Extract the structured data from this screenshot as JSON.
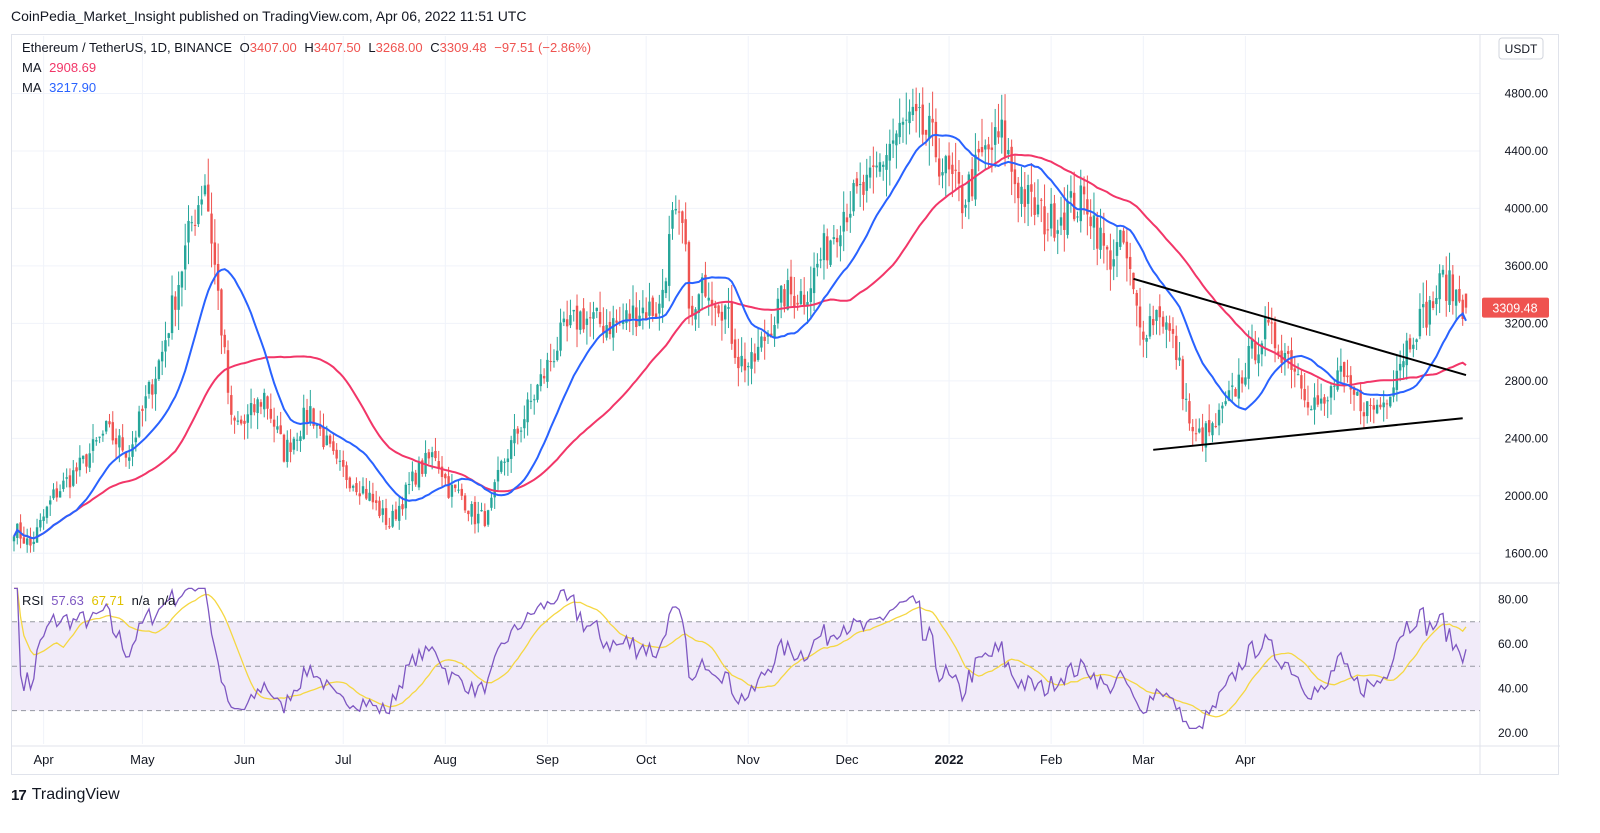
{
  "publisher_line": "CoinPedia_Market_Insight published on TradingView.com, Apr 06, 2022 11:51 UTC",
  "header": {
    "symbol": "Ethereum / TetherUS, 1D, BINANCE",
    "open_label": "O",
    "open": "3407.00",
    "high_label": "H",
    "high": "3407.50",
    "low_label": "L",
    "low": "3268.00",
    "close_label": "C",
    "close": "3309.48",
    "change": "−97.51 (−2.86%)"
  },
  "ma1": {
    "label": "MA",
    "value": "2908.69"
  },
  "ma2": {
    "label": "MA",
    "value": "3217.90"
  },
  "rsi_legend": {
    "label": "RSI",
    "value": "57.63",
    "ma": "67.71",
    "na1": "n/a",
    "na2": "n/a"
  },
  "currency_badge": "USDT",
  "price_badge": "3309.48",
  "footer": {
    "brand": "TradingView",
    "logo": "17"
  },
  "colors": {
    "up": "#26a69a",
    "down": "#ef5350",
    "ma_slow": "#f23668",
    "ma_fast": "#2962ff",
    "rsi": "#7e57c2",
    "rsi_ma": "#f5d742",
    "rsi_band": "#f1ebf9",
    "grid": "#f0f3fa"
  },
  "chart_data": [
    {
      "type": "candlestick",
      "title": "Ethereum / TetherUS, 1D, BINANCE",
      "ylim": [
        1400,
        5200
      ],
      "y_ticks": [
        "1600.00",
        "2000.00",
        "2400.00",
        "2800.00",
        "3200.00",
        "3600.00",
        "4000.00",
        "4400.00",
        "4800.00"
      ],
      "x_ticks": [
        "Apr",
        "May",
        "Jun",
        "Jul",
        "Aug",
        "Sep",
        "Oct",
        "Nov",
        "Dec",
        "2022",
        "Feb",
        "Mar",
        "Apr"
      ],
      "close_anchors": [
        [
          0,
          1780
        ],
        [
          5,
          1650
        ],
        [
          12,
          2000
        ],
        [
          20,
          2200
        ],
        [
          28,
          2450
        ],
        [
          35,
          2300
        ],
        [
          45,
          3000
        ],
        [
          54,
          3900
        ],
        [
          58,
          4200
        ],
        [
          62,
          3400
        ],
        [
          66,
          2500
        ],
        [
          70,
          2500
        ],
        [
          76,
          2700
        ],
        [
          82,
          2300
        ],
        [
          90,
          2600
        ],
        [
          98,
          2200
        ],
        [
          106,
          2050
        ],
        [
          114,
          1800
        ],
        [
          122,
          2150
        ],
        [
          128,
          2300
        ],
        [
          132,
          2050
        ],
        [
          136,
          2000
        ],
        [
          140,
          1850
        ],
        [
          144,
          1850
        ],
        [
          148,
          2200
        ],
        [
          154,
          2500
        ],
        [
          160,
          2800
        ],
        [
          166,
          3100
        ],
        [
          172,
          3250
        ],
        [
          178,
          3200
        ],
        [
          184,
          3200
        ],
        [
          190,
          3300
        ],
        [
          196,
          3300
        ],
        [
          200,
          3900
        ],
        [
          203,
          3850
        ],
        [
          206,
          3200
        ],
        [
          210,
          3500
        ],
        [
          216,
          3300
        ],
        [
          220,
          2950
        ],
        [
          224,
          2900
        ],
        [
          228,
          3100
        ],
        [
          234,
          3400
        ],
        [
          240,
          3400
        ],
        [
          246,
          3700
        ],
        [
          252,
          4000
        ],
        [
          260,
          4150
        ],
        [
          266,
          4450
        ],
        [
          272,
          4600
        ],
        [
          278,
          4500
        ],
        [
          283,
          4250
        ],
        [
          288,
          4050
        ],
        [
          294,
          4350
        ],
        [
          300,
          4500
        ],
        [
          304,
          4200
        ],
        [
          308,
          4050
        ],
        [
          314,
          3900
        ],
        [
          320,
          4000
        ],
        [
          326,
          4050
        ],
        [
          332,
          3650
        ],
        [
          337,
          3750
        ],
        [
          342,
          3150
        ],
        [
          348,
          3300
        ],
        [
          353,
          3000
        ],
        [
          358,
          2400
        ],
        [
          364,
          2450
        ],
        [
          370,
          2700
        ],
        [
          376,
          3000
        ],
        [
          380,
          3150
        ],
        [
          384,
          3050
        ],
        [
          388,
          2950
        ],
        [
          393,
          2700
        ],
        [
          398,
          2600
        ],
        [
          402,
          2850
        ],
        [
          406,
          2700
        ],
        [
          412,
          2600
        ],
        [
          416,
          2650
        ],
        [
          420,
          2900
        ],
        [
          426,
          3200
        ],
        [
          430,
          3300
        ],
        [
          434,
          3500
        ],
        [
          438,
          3400
        ],
        [
          441,
          3309.48
        ]
      ],
      "last_candle": {
        "open": 3407.0,
        "high": 3407.5,
        "low": 3268.0,
        "close": 3309.48
      },
      "series": [
        {
          "name": "MA",
          "period": 50,
          "last_value": 2908.69
        },
        {
          "name": "MA",
          "period": 20,
          "last_value": 3217.9
        }
      ],
      "trendlines": [
        {
          "from": [
            340,
            3510
          ],
          "to": [
            441,
            2840
          ]
        },
        {
          "from": [
            346,
            2320
          ],
          "to": [
            440,
            2540
          ]
        }
      ]
    },
    {
      "type": "line",
      "title": "RSI",
      "ylim": [
        15,
        87
      ],
      "y_ticks": [
        "20.00",
        "40.00",
        "60.00",
        "80.00"
      ],
      "band": [
        30,
        70
      ],
      "midline": 50,
      "series": [
        {
          "name": "RSI",
          "last_value": 57.63
        },
        {
          "name": "RSI MA",
          "last_value": 67.71
        }
      ]
    }
  ]
}
